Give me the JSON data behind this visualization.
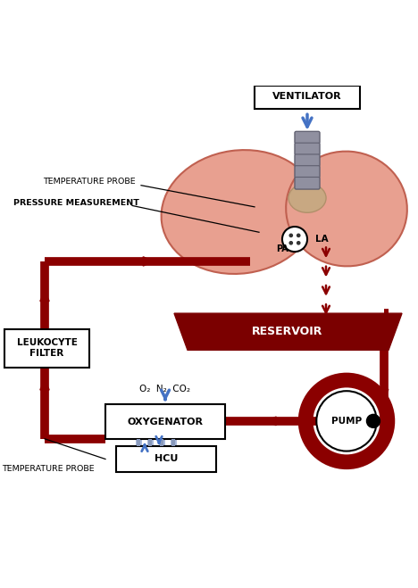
{
  "bg_color": "#ffffff",
  "dark_red": "#8B0000",
  "blue": "#4472C4",
  "lung_fill": "#E8A090",
  "lung_edge": "#C06050",
  "trachea_fill": "#9090A0",
  "trachea_edge": "#606070",
  "reservoir_fill": "#7B0000",
  "pipe_lw": 7,
  "fig_w": 4.68,
  "fig_h": 6.59,
  "dpi": 100,
  "labels": {
    "ventilator": "VENTILATOR",
    "temp_probe_top": "TEMPERATURE PROBE",
    "pressure": "PRESSURE MEASUREMENT",
    "pa": "PA",
    "la": "LA",
    "reservoir": "RESERVOIR",
    "leukocyte": "LEUKOCYTE\nFILTER",
    "oxygenator": "OXYGENATOR",
    "gases": "O₂  N₂  CO₂",
    "hcu": "HCU",
    "pump": "PUMP",
    "temp_probe_bot": "TEMPERATURE PROBE"
  }
}
